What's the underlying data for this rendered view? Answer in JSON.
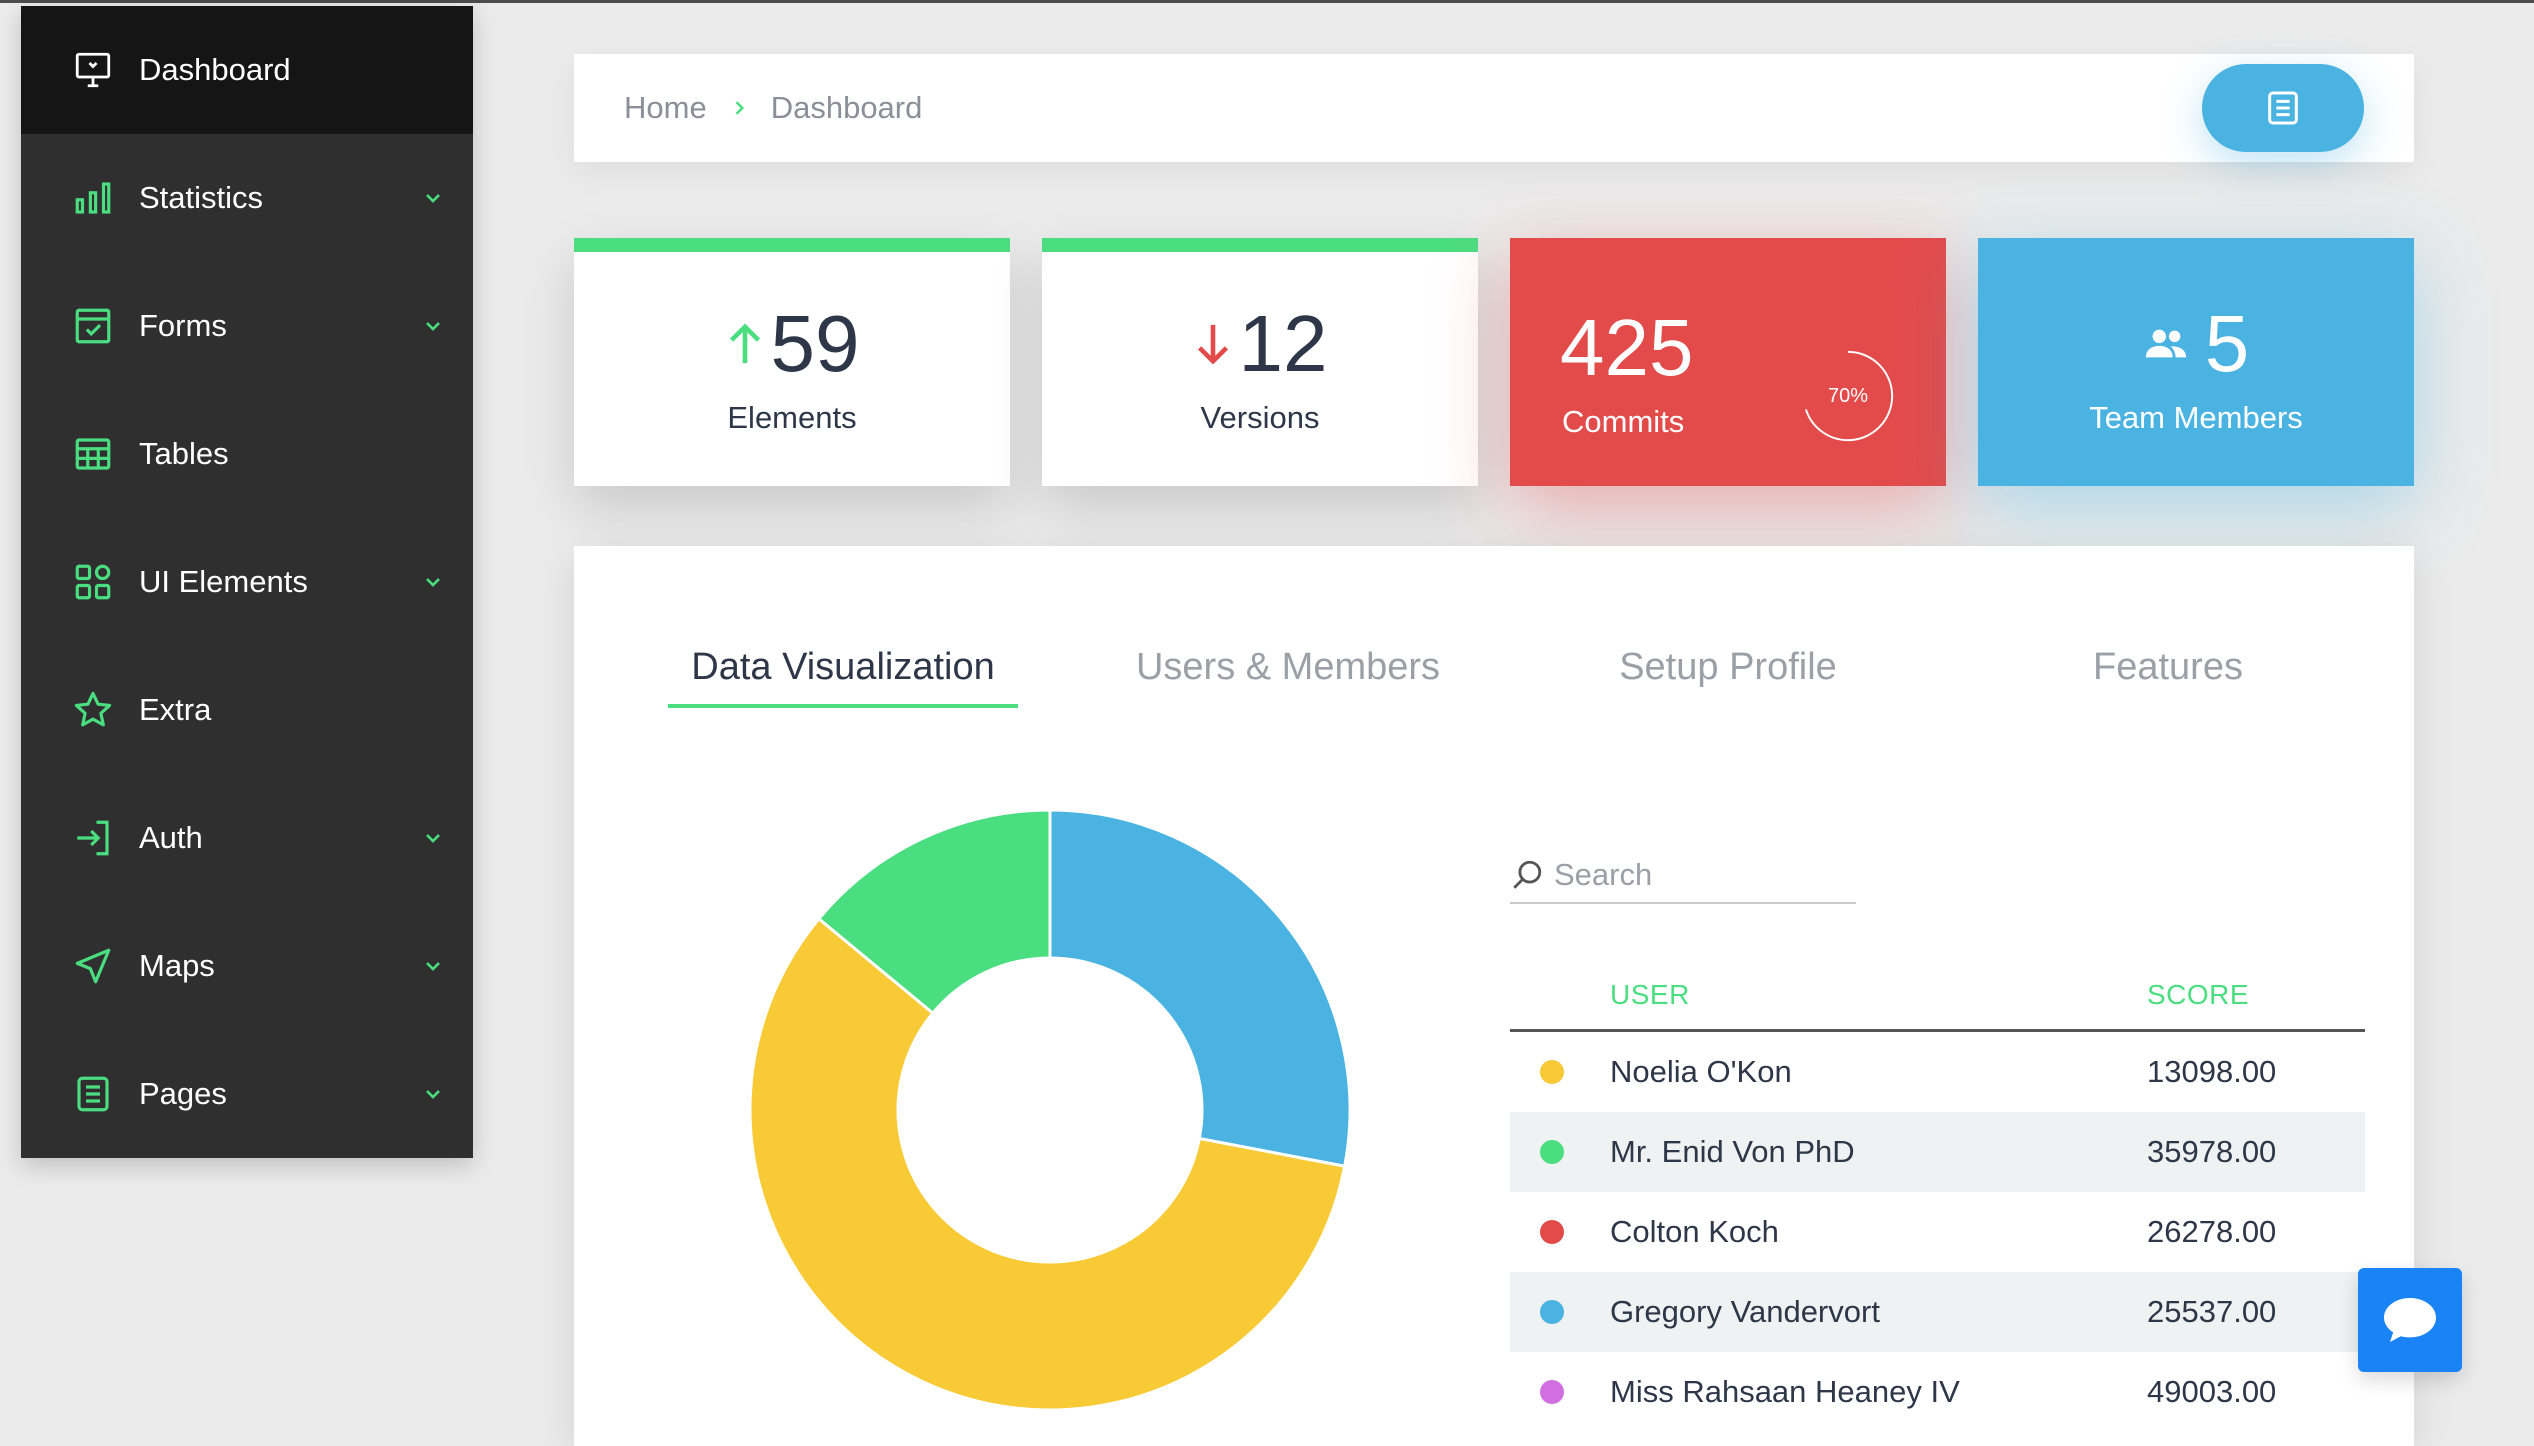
{
  "sidebar": {
    "items": [
      {
        "label": "Dashboard",
        "icon": "monitor-icon",
        "has_submenu": false,
        "active": true
      },
      {
        "label": "Statistics",
        "icon": "bar-chart-icon",
        "has_submenu": true
      },
      {
        "label": "Forms",
        "icon": "checkbox-icon",
        "has_submenu": true
      },
      {
        "label": "Tables",
        "icon": "table-icon",
        "has_submenu": false
      },
      {
        "label": "UI Elements",
        "icon": "grid-shapes-icon",
        "has_submenu": true
      },
      {
        "label": "Extra",
        "icon": "star-icon",
        "has_submenu": false
      },
      {
        "label": "Auth",
        "icon": "sign-in-icon",
        "has_submenu": true
      },
      {
        "label": "Maps",
        "icon": "navigation-arrow-icon",
        "has_submenu": true
      },
      {
        "label": "Pages",
        "icon": "document-icon",
        "has_submenu": true
      }
    ]
  },
  "breadcrumb": {
    "home": "Home",
    "current": "Dashboard",
    "action_icon": "document-icon"
  },
  "stats": {
    "elements": {
      "value": "59",
      "label": "Elements",
      "trend": "up"
    },
    "versions": {
      "value": "12",
      "label": "Versions",
      "trend": "down"
    },
    "commits": {
      "value": "425",
      "label": "Commits",
      "progress_label": "70%",
      "progress": 0.7
    },
    "team": {
      "value": "5",
      "label": "Team Members",
      "icon": "people-icon"
    }
  },
  "tabs": [
    {
      "label": "Data Visualization",
      "active": true
    },
    {
      "label": "Users & Members",
      "active": false
    },
    {
      "label": "Setup Profile",
      "active": false
    },
    {
      "label": "Features",
      "active": false
    }
  ],
  "search": {
    "placeholder": "Search",
    "value": ""
  },
  "table": {
    "headers": {
      "user": "USER",
      "score": "SCORE"
    },
    "rows": [
      {
        "name": "Noelia O'Kon",
        "score": "13098.00",
        "color": "#f7ca36"
      },
      {
        "name": "Mr. Enid Von PhD",
        "score": "35978.00",
        "color": "#4ade80"
      },
      {
        "name": "Colton Koch",
        "score": "26278.00",
        "color": "#e34b4b"
      },
      {
        "name": "Gregory Vandervort",
        "score": "25537.00",
        "color": "#4ab3e2"
      },
      {
        "name": "Miss Rahsaan Heaney IV",
        "score": "49003.00",
        "color": "#d16ee0"
      }
    ]
  },
  "chart_data": {
    "type": "pie",
    "variant": "donut",
    "values": [
      28,
      58,
      14
    ],
    "colors": [
      "#4ab3e2",
      "#f7ca36",
      "#4ade80"
    ]
  },
  "colors": {
    "accent_green": "#4ade80",
    "red": "#e34b4b",
    "blue": "#4ab3e2",
    "sidebar_bg": "#2f2f2f",
    "sidebar_active": "#151515",
    "chat": "#1a83f5"
  }
}
